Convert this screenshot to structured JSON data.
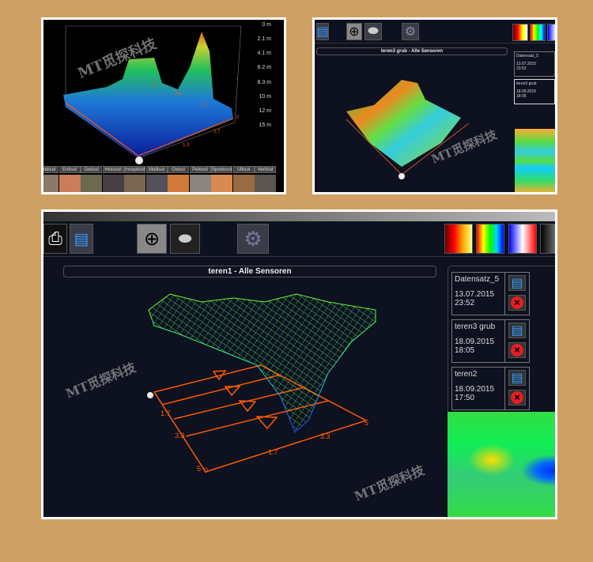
{
  "watermark": "MT觅探科技",
  "panel1": {
    "depth_labels": [
      "0 m",
      "2.1 m",
      "4.1 m",
      "6.2 m",
      "8.3 m",
      "10 m",
      "12 m",
      "15 m"
    ],
    "axis_labels": [
      "5",
      "3.3",
      "1.7",
      "0",
      "2.7",
      "1.3"
    ],
    "soil_types": [
      "Aridisol",
      "Entisol",
      "Gelisol",
      "Histosol",
      "Inceptisol",
      "Mollisol",
      "Oxisol",
      "Pelosol",
      "Spodosol",
      "Ultisol",
      "Vertisol"
    ],
    "soil_colors": [
      "#8a7a6a",
      "#c97d5a",
      "#6b6a50",
      "#4a3f45",
      "#7a6650",
      "#55505a",
      "#d27a3a",
      "#8a8580",
      "#d88a50",
      "#9a6a45",
      "#5a5550"
    ]
  },
  "panel2": {
    "view_title": "teren3 grub - Alle Sensoren",
    "records": [
      {
        "name": "Datensatz_5",
        "date": "13.07.2015",
        "time": "23:52"
      },
      {
        "name": "teren3 grub",
        "date": "18.09.2015",
        "time": "18:05"
      }
    ]
  },
  "panel3": {
    "view_title": "teren1 - Alle Sensoren",
    "records": [
      {
        "name": "Datensatz_5",
        "date": "13.07.2015",
        "time": "23:52"
      },
      {
        "name": "teren3 grub",
        "date": "18.09.2015",
        "time": "18:05"
      },
      {
        "name": "teren2",
        "date": "18.09.2015",
        "time": "17:50"
      }
    ],
    "axis_labels": {
      "origin": "0",
      "left_1": "1.7",
      "left_2": "3.3",
      "left_end": "5",
      "bottom_0": "0",
      "bottom_1": "1.7",
      "bottom_2": "3.3",
      "right_end": "5"
    }
  },
  "toolbar": {
    "icons": [
      "print-icon",
      "save-icon",
      "target-icon",
      "world-map-icon",
      "gear-icon"
    ],
    "palettes": [
      "heat",
      "rainbow",
      "blue-white-red",
      "grayscale"
    ]
  },
  "colors": {
    "background": "#CFA063",
    "axis": "#FF5A00",
    "panel": "#0d1120"
  }
}
